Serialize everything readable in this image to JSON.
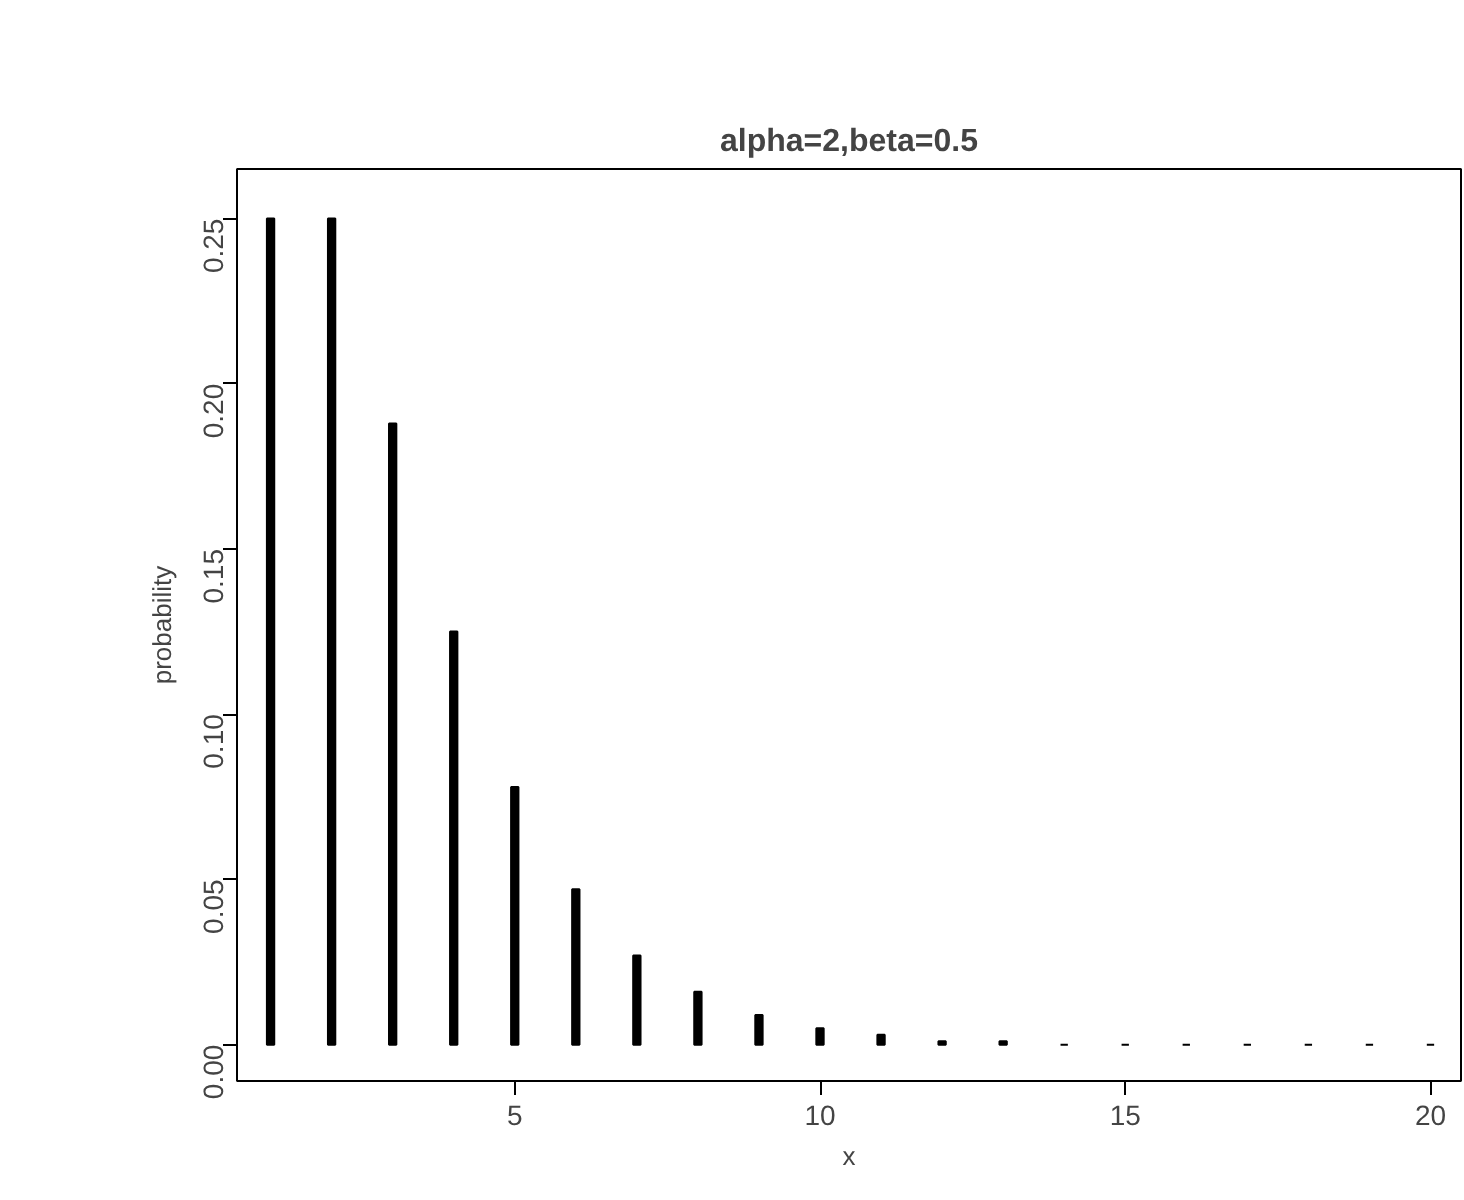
{
  "chart_data": {
    "type": "bar",
    "title": "alpha=2,beta=0.5",
    "xlabel": "x",
    "ylabel": "probability",
    "x": [
      1,
      2,
      3,
      4,
      5,
      6,
      7,
      8,
      9,
      10,
      11,
      12,
      13,
      14,
      15,
      16,
      17,
      18,
      19,
      20
    ],
    "values": [
      0.25,
      0.25,
      0.188,
      0.125,
      0.078,
      0.047,
      0.027,
      0.016,
      0.009,
      0.005,
      0.003,
      0.001,
      0.001,
      0,
      0,
      0,
      0,
      0,
      0,
      0
    ],
    "color": "#000000",
    "xlim": [
      0.45,
      20.5
    ],
    "ylim": [
      -0.011,
      0.265
    ],
    "xticks": [
      5,
      10,
      15,
      20
    ],
    "yticks": [
      {
        "value": 0,
        "label": "0.00"
      },
      {
        "value": 0.05,
        "label": "0.05"
      },
      {
        "value": 0.1,
        "label": "0.10"
      },
      {
        "value": 0.15,
        "label": "0.15"
      },
      {
        "value": 0.2,
        "label": "0.20"
      },
      {
        "value": 0.25,
        "label": "0.25"
      }
    ],
    "grid": false
  }
}
